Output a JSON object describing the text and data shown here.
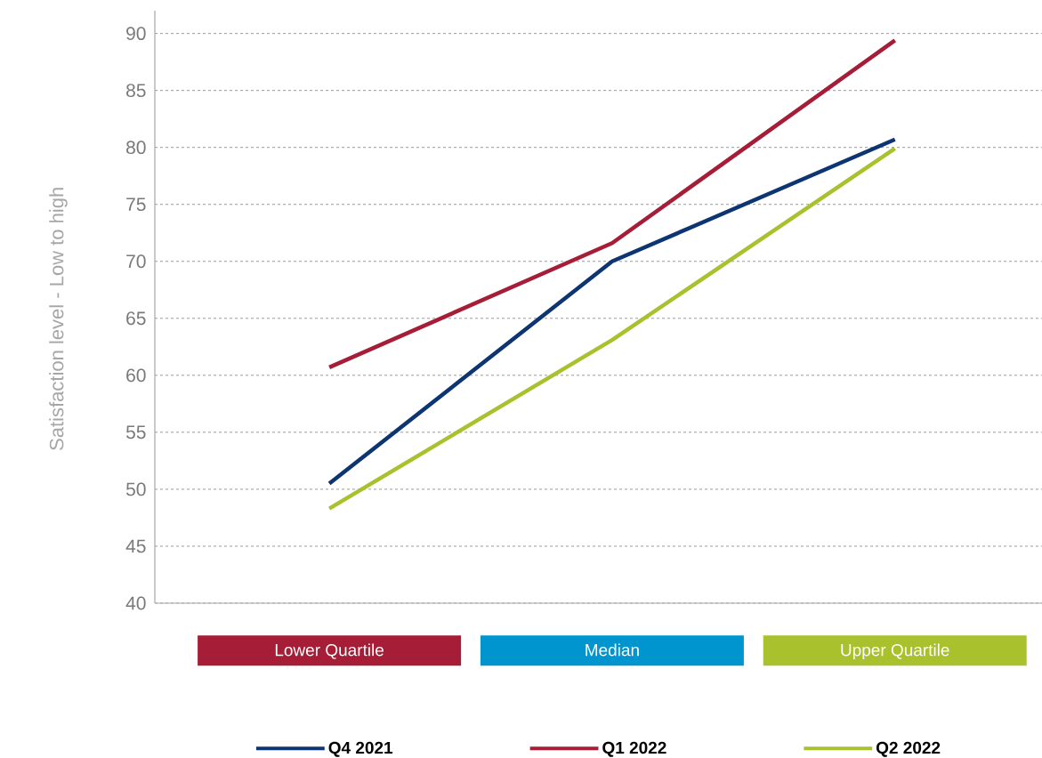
{
  "chart_data": {
    "type": "line",
    "ylabel": "Satisfaction level - Low to high",
    "categories": [
      "Lower Quartile",
      "Median",
      "Upper Quartile"
    ],
    "series": [
      {
        "name": "Q4 2021",
        "color": "#0d3572",
        "values": [
          50.5,
          70,
          80.7
        ]
      },
      {
        "name": "Q1 2022",
        "color": "#a51d36",
        "values": [
          60.7,
          71.6,
          89.4
        ]
      },
      {
        "name": "Q2 2022",
        "color": "#a9c12d",
        "values": [
          48.3,
          63.1,
          79.9
        ]
      }
    ],
    "ylim": [
      40,
      92
    ],
    "yticks": [
      40,
      45,
      50,
      55,
      60,
      65,
      70,
      75,
      80,
      85,
      90
    ],
    "grid": "y",
    "legend": "bottom",
    "marker": "none",
    "line_style": "solid"
  }
}
